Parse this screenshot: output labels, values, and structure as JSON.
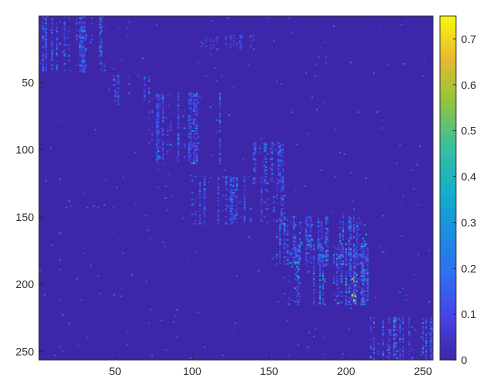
{
  "chart_data": {
    "type": "heatmap",
    "title": "",
    "xlabel": "",
    "ylabel": "",
    "xlim": [
      0.5,
      256.5
    ],
    "ylim": [
      0.5,
      256.5
    ],
    "y_reversed": true,
    "grid": false,
    "colormap": "parula",
    "background_value": 0,
    "x_ticks": [
      50,
      100,
      150,
      200,
      250
    ],
    "y_ticks": [
      50,
      100,
      150,
      200,
      250
    ],
    "colorbar": {
      "location": "right",
      "range": [
        0,
        0.75
      ],
      "ticks": [
        0,
        0.1,
        0.2,
        0.3,
        0.4,
        0.5,
        0.6,
        0.7
      ]
    },
    "colors": {
      "low": "#3e26a8",
      "mid_low": "#2f6ff2",
      "mid": "#13b2c7",
      "mid_high": "#8fc63b",
      "high": "#f8fa0d"
    },
    "blocks": [
      {
        "cols": [
          1,
          45
        ],
        "rows": [
          1,
          42
        ],
        "max_value": 0.35
      },
      {
        "cols": [
          45,
          72
        ],
        "rows": [
          45,
          65
        ],
        "max_value": 0.3
      },
      {
        "cols": [
          72,
          120
        ],
        "rows": [
          58,
          110
        ],
        "max_value": 0.35
      },
      {
        "cols": [
          140,
          160
        ],
        "rows": [
          95,
          125
        ],
        "max_value": 0.3
      },
      {
        "cols": [
          100,
          160
        ],
        "rows": [
          120,
          155
        ],
        "max_value": 0.3
      },
      {
        "cols": [
          155,
          215
        ],
        "rows": [
          150,
          185
        ],
        "max_value": 0.4
      },
      {
        "cols": [
          160,
          215
        ],
        "rows": [
          170,
          215
        ],
        "max_value": 0.45
      },
      {
        "cols": [
          195,
          210
        ],
        "rows": [
          195,
          215
        ],
        "max_value": 0.75
      },
      {
        "cols": [
          215,
          256
        ],
        "rows": [
          225,
          256
        ],
        "max_value": 0.35
      },
      {
        "cols": [
          100,
          140
        ],
        "rows": [
          15,
          25
        ],
        "max_value": 0.15
      }
    ]
  }
}
